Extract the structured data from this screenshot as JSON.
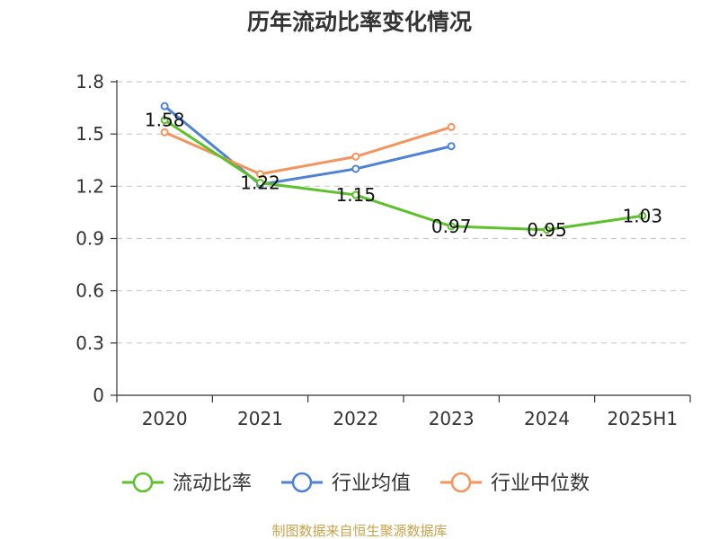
{
  "source_text": "制图数据来自恒生聚源数据库",
  "chart_data": {
    "type": "line",
    "title": "历年流动比率变化情况",
    "xlabel": "",
    "ylabel": "",
    "categories": [
      "2020",
      "2021",
      "2022",
      "2023",
      "2024",
      "2025H1"
    ],
    "yticks": [
      "0",
      "0.3",
      "0.6",
      "0.9",
      "1.2",
      "1.5",
      "1.8"
    ],
    "ylim": [
      0,
      1.8
    ],
    "grid": true,
    "legend_position": "bottom",
    "series": [
      {
        "name": "流动比率",
        "color": "#5ec12c",
        "values": [
          1.58,
          1.22,
          1.15,
          0.97,
          0.95,
          1.03
        ],
        "labels": [
          "1.58",
          "1.22",
          "1.15",
          "0.97",
          "0.95",
          "1.03"
        ]
      },
      {
        "name": "行业均值",
        "color": "#4f82d6",
        "values": [
          1.66,
          1.21,
          1.3,
          1.43,
          null,
          null
        ]
      },
      {
        "name": "行业中位数",
        "color": "#f5935c",
        "values": [
          1.51,
          1.27,
          1.37,
          1.54,
          null,
          null
        ]
      }
    ]
  }
}
